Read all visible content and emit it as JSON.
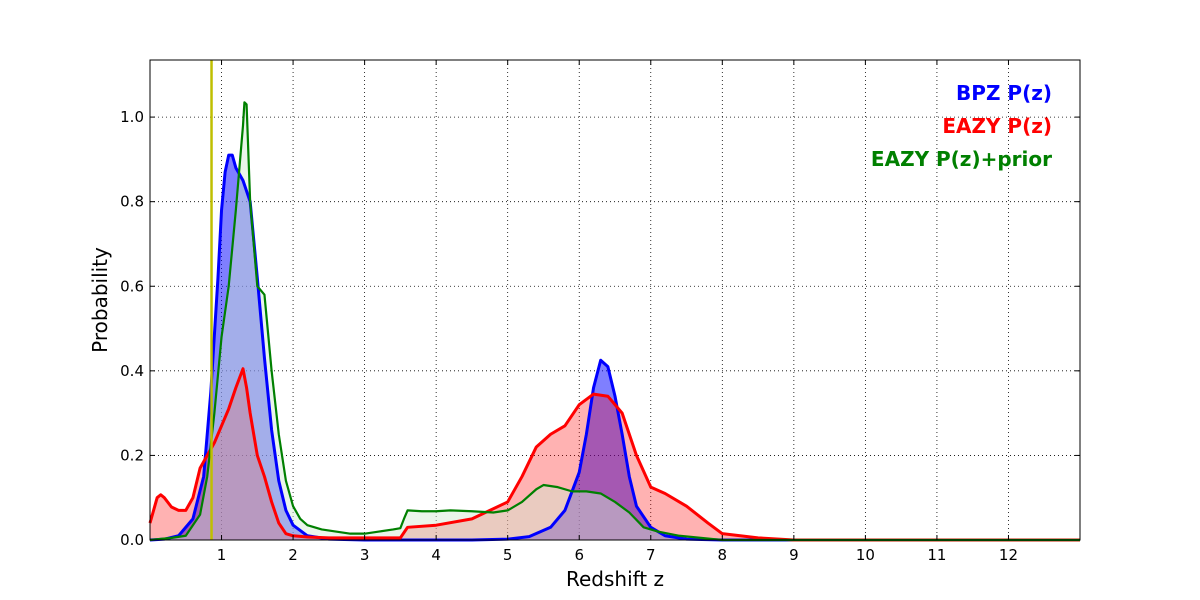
{
  "chart_data": {
    "type": "area",
    "xlabel": "Redshift z",
    "ylabel": "Probability",
    "xlim": [
      0,
      13
    ],
    "ylim": [
      0,
      1.135
    ],
    "x_ticks": [
      1,
      2,
      3,
      4,
      5,
      6,
      7,
      8,
      9,
      10,
      11,
      12
    ],
    "y_ticks": [
      0.0,
      0.2,
      0.4,
      0.6,
      0.8,
      1.0
    ],
    "x_tick_labels": [
      "1",
      "2",
      "3",
      "4",
      "5",
      "6",
      "7",
      "8",
      "9",
      "10",
      "11",
      "12"
    ],
    "y_tick_labels": [
      "0.0",
      "0.2",
      "0.4",
      "0.6",
      "0.8",
      "1.0"
    ],
    "grid": true,
    "legend_position": "top-right",
    "vertical_line": {
      "x": 0.86,
      "color": "#bfbf00"
    },
    "series": [
      {
        "name": "BPZ P(z)",
        "color": "#0000ff",
        "fill": "#0000ff",
        "x": [
          0,
          0.2,
          0.4,
          0.6,
          0.75,
          0.85,
          0.95,
          1.0,
          1.05,
          1.1,
          1.15,
          1.2,
          1.3,
          1.4,
          1.5,
          1.6,
          1.7,
          1.8,
          1.9,
          2.0,
          2.2,
          2.5,
          3.0,
          4.0,
          4.5,
          5.0,
          5.3,
          5.6,
          5.8,
          6.0,
          6.1,
          6.2,
          6.3,
          6.4,
          6.5,
          6.6,
          6.7,
          6.8,
          7.0,
          7.2,
          7.5,
          8.0,
          9.0,
          13.0
        ],
        "y": [
          0.0,
          0.002,
          0.01,
          0.05,
          0.15,
          0.35,
          0.62,
          0.78,
          0.87,
          0.91,
          0.91,
          0.88,
          0.85,
          0.8,
          0.62,
          0.43,
          0.26,
          0.14,
          0.07,
          0.035,
          0.01,
          0.002,
          0.0,
          0.0,
          0.0,
          0.002,
          0.008,
          0.03,
          0.07,
          0.16,
          0.25,
          0.36,
          0.425,
          0.41,
          0.34,
          0.25,
          0.15,
          0.08,
          0.03,
          0.01,
          0.002,
          0.0,
          0.0,
          0.0
        ]
      },
      {
        "name": "EAZY P(z)",
        "color": "#ff0000",
        "fill": "#ff0000",
        "x": [
          0,
          0.05,
          0.1,
          0.15,
          0.2,
          0.3,
          0.4,
          0.5,
          0.6,
          0.7,
          0.8,
          0.9,
          1.0,
          1.1,
          1.2,
          1.3,
          1.35,
          1.4,
          1.5,
          1.6,
          1.7,
          1.8,
          1.9,
          2.0,
          2.2,
          2.5,
          3.0,
          3.5,
          3.6,
          4.0,
          4.5,
          5.0,
          5.2,
          5.4,
          5.6,
          5.8,
          6.0,
          6.2,
          6.4,
          6.6,
          6.8,
          7.0,
          7.2,
          7.5,
          7.8,
          8.0,
          8.5,
          9.0,
          10.0,
          13.0
        ],
        "y": [
          0.04,
          0.07,
          0.1,
          0.107,
          0.1,
          0.078,
          0.07,
          0.07,
          0.1,
          0.17,
          0.2,
          0.23,
          0.27,
          0.31,
          0.36,
          0.405,
          0.36,
          0.3,
          0.2,
          0.15,
          0.09,
          0.04,
          0.015,
          0.01,
          0.007,
          0.005,
          0.005,
          0.005,
          0.03,
          0.035,
          0.05,
          0.09,
          0.15,
          0.22,
          0.25,
          0.27,
          0.32,
          0.345,
          0.34,
          0.3,
          0.2,
          0.125,
          0.11,
          0.08,
          0.04,
          0.015,
          0.005,
          0.0,
          0.0,
          0.0
        ]
      },
      {
        "name": "EAZY P(z)+prior",
        "color": "#008000",
        "fill": "#d0e8d0",
        "x": [
          0,
          0.3,
          0.5,
          0.7,
          0.8,
          0.9,
          1.0,
          1.1,
          1.2,
          1.25,
          1.3,
          1.32,
          1.35,
          1.4,
          1.45,
          1.5,
          1.6,
          1.7,
          1.8,
          1.9,
          2.0,
          2.1,
          2.2,
          2.4,
          2.6,
          2.8,
          3.0,
          3.2,
          3.4,
          3.5,
          3.55,
          3.6,
          3.8,
          4.0,
          4.2,
          4.5,
          4.8,
          5.0,
          5.2,
          5.4,
          5.5,
          5.7,
          5.9,
          6.1,
          6.3,
          6.5,
          6.7,
          6.9,
          7.1,
          7.4,
          7.7,
          8.0,
          8.5,
          13.0
        ],
        "y": [
          0.0,
          0.005,
          0.01,
          0.06,
          0.15,
          0.3,
          0.48,
          0.6,
          0.78,
          0.88,
          0.98,
          1.035,
          1.03,
          0.8,
          0.7,
          0.6,
          0.58,
          0.4,
          0.25,
          0.14,
          0.08,
          0.05,
          0.035,
          0.025,
          0.02,
          0.015,
          0.015,
          0.02,
          0.025,
          0.028,
          0.05,
          0.07,
          0.068,
          0.068,
          0.07,
          0.068,
          0.065,
          0.07,
          0.09,
          0.12,
          0.13,
          0.125,
          0.115,
          0.115,
          0.11,
          0.09,
          0.065,
          0.03,
          0.02,
          0.01,
          0.005,
          0.0,
          0.0,
          0.0
        ]
      }
    ]
  }
}
